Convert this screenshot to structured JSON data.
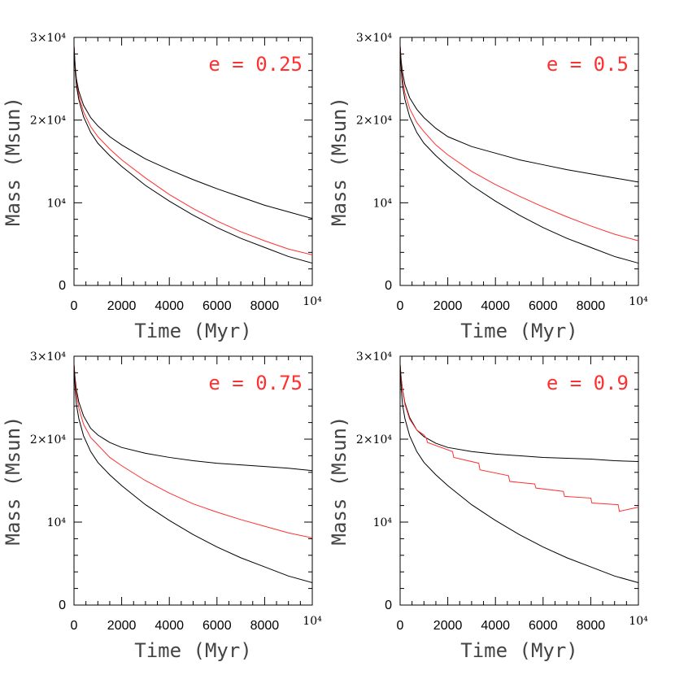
{
  "chart_data": [
    {
      "type": "line",
      "annotation": "e = 0.25",
      "xlabel": "Time (Myr)",
      "ylabel": "Mass (Msun)",
      "xlim": [
        0,
        10000
      ],
      "ylim": [
        0,
        30000
      ],
      "xtick_labels": [
        "0",
        "2000",
        "4000",
        "6000",
        "8000",
        "10⁴"
      ],
      "ytick_labels": [
        "0",
        "10⁴",
        "2×10⁴",
        "3×10⁴"
      ],
      "series": [
        {
          "color": "#000000",
          "x": [
            0,
            50,
            100,
            200,
            400,
            700,
            1000,
            1500,
            2000,
            3000,
            4000,
            5000,
            6000,
            7000,
            8000,
            9000,
            10000
          ],
          "y": [
            29000,
            26500,
            25000,
            23500,
            21800,
            20300,
            19300,
            18000,
            17000,
            15300,
            14000,
            12800,
            11700,
            10700,
            9700,
            8900,
            8100
          ]
        },
        {
          "color": "#ff3030",
          "x": [
            0,
            50,
            100,
            200,
            400,
            700,
            1000,
            1500,
            2000,
            3000,
            4000,
            5000,
            6000,
            7000,
            8000,
            9000,
            10000
          ],
          "y": [
            29000,
            26200,
            24500,
            23000,
            21000,
            19200,
            18000,
            16500,
            15200,
            13000,
            11000,
            9300,
            7800,
            6500,
            5400,
            4400,
            3700
          ]
        },
        {
          "color": "#000000",
          "x": [
            0,
            50,
            100,
            200,
            400,
            700,
            1000,
            1500,
            2000,
            3000,
            4000,
            5000,
            6000,
            7000,
            8000,
            9000,
            10000
          ],
          "y": [
            29000,
            26000,
            24200,
            22500,
            20400,
            18500,
            17200,
            15700,
            14400,
            12100,
            10200,
            8500,
            7000,
            5700,
            4600,
            3500,
            2700
          ]
        }
      ]
    },
    {
      "type": "line",
      "annotation": "e = 0.5",
      "xlabel": "Time (Myr)",
      "ylabel": "Mass (Msun)",
      "xlim": [
        0,
        10000
      ],
      "ylim": [
        0,
        30000
      ],
      "xtick_labels": [
        "0",
        "2000",
        "4000",
        "6000",
        "8000",
        "10⁴"
      ],
      "ytick_labels": [
        "0",
        "10⁴",
        "2×10⁴",
        "3×10⁴"
      ],
      "series": [
        {
          "color": "#000000",
          "x": [
            0,
            50,
            100,
            200,
            400,
            700,
            1000,
            1500,
            2000,
            3000,
            4000,
            5000,
            6000,
            7000,
            8000,
            9000,
            10000
          ],
          "y": [
            29000,
            27000,
            25800,
            24300,
            22700,
            21300,
            20300,
            19000,
            18000,
            16800,
            16000,
            15200,
            14600,
            14000,
            13500,
            13000,
            12500
          ]
        },
        {
          "color": "#ff3030",
          "x": [
            0,
            50,
            100,
            200,
            400,
            700,
            1000,
            1500,
            2000,
            3000,
            4000,
            5000,
            6000,
            7000,
            8000,
            9000,
            10000
          ],
          "y": [
            29000,
            26500,
            25000,
            23300,
            21400,
            19700,
            18600,
            17000,
            15800,
            13800,
            12200,
            10800,
            9500,
            8300,
            7200,
            6200,
            5400
          ]
        },
        {
          "color": "#000000",
          "x": [
            0,
            50,
            100,
            200,
            400,
            700,
            1000,
            1500,
            2000,
            3000,
            4000,
            5000,
            6000,
            7000,
            8000,
            9000,
            10000
          ],
          "y": [
            29000,
            26000,
            24200,
            22500,
            20400,
            18500,
            17200,
            15700,
            14400,
            12100,
            10200,
            8500,
            7000,
            5700,
            4600,
            3500,
            2700
          ]
        }
      ]
    },
    {
      "type": "line",
      "annotation": "e = 0.75",
      "xlabel": "Time (Myr)",
      "ylabel": "Mass (Msun)",
      "xlim": [
        0,
        10000
      ],
      "ylim": [
        0,
        30000
      ],
      "xtick_labels": [
        "0",
        "2000",
        "4000",
        "6000",
        "8000",
        "10⁴"
      ],
      "ytick_labels": [
        "0",
        "10⁴",
        "2×10⁴",
        "3×10⁴"
      ],
      "series": [
        {
          "color": "#000000",
          "x": [
            0,
            50,
            100,
            200,
            400,
            700,
            1000,
            1500,
            2000,
            3000,
            4000,
            5000,
            6000,
            7000,
            8000,
            9000,
            10000
          ],
          "y": [
            29000,
            27200,
            26000,
            24500,
            22800,
            21300,
            20500,
            19600,
            19000,
            18300,
            17800,
            17400,
            17100,
            16900,
            16700,
            16500,
            16200
          ]
        },
        {
          "color": "#ff3030",
          "x": [
            0,
            50,
            100,
            200,
            400,
            700,
            1000,
            1500,
            2000,
            3000,
            4000,
            5000,
            6000,
            7000,
            8000,
            9000,
            10000
          ],
          "y": [
            29000,
            26800,
            25500,
            23800,
            21800,
            20200,
            19300,
            17800,
            16800,
            15000,
            13500,
            12200,
            11200,
            10300,
            9500,
            8700,
            8100
          ]
        },
        {
          "color": "#000000",
          "x": [
            0,
            50,
            100,
            200,
            400,
            700,
            1000,
            1500,
            2000,
            3000,
            4000,
            5000,
            6000,
            7000,
            8000,
            9000,
            10000
          ],
          "y": [
            29000,
            26000,
            24200,
            22500,
            20400,
            18500,
            17200,
            15700,
            14400,
            12100,
            10200,
            8500,
            7000,
            5700,
            4600,
            3500,
            2700
          ]
        }
      ]
    },
    {
      "type": "line",
      "annotation": "e = 0.9",
      "xlabel": "Time (Myr)",
      "ylabel": "Mass (Msun)",
      "xlim": [
        0,
        10000
      ],
      "ylim": [
        0,
        30000
      ],
      "xtick_labels": [
        "0",
        "2000",
        "4000",
        "6000",
        "8000",
        "10⁴"
      ],
      "ytick_labels": [
        "0",
        "10⁴",
        "2×10⁴",
        "3×10⁴"
      ],
      "series": [
        {
          "color": "#000000",
          "x": [
            0,
            50,
            100,
            200,
            400,
            700,
            1000,
            1500,
            2000,
            3000,
            4000,
            5000,
            6000,
            7000,
            8000,
            9000,
            10000
          ],
          "y": [
            29000,
            27200,
            26000,
            24400,
            22600,
            21100,
            20300,
            19500,
            19000,
            18500,
            18200,
            18000,
            17800,
            17700,
            17600,
            17400,
            17300
          ]
        },
        {
          "color": "#ff3030",
          "x": [
            0,
            50,
            100,
            200,
            400,
            700,
            1000,
            1100,
            1150,
            2200,
            2250,
            3300,
            3350,
            4550,
            4600,
            5650,
            5700,
            6850,
            6900,
            8000,
            8050,
            9150,
            9200,
            10000
          ],
          "y": [
            29000,
            27100,
            25900,
            24200,
            22400,
            21100,
            20500,
            20100,
            19600,
            18500,
            17800,
            17100,
            16300,
            15600,
            14900,
            14600,
            14100,
            13700,
            13100,
            12900,
            12300,
            12100,
            11300,
            11800
          ]
        },
        {
          "color": "#000000",
          "x": [
            0,
            50,
            100,
            200,
            400,
            700,
            1000,
            1500,
            2000,
            3000,
            4000,
            5000,
            6000,
            7000,
            8000,
            9000,
            10000
          ],
          "y": [
            29000,
            26000,
            24200,
            22500,
            20400,
            18500,
            17200,
            15700,
            14400,
            12100,
            10200,
            8500,
            7000,
            5700,
            4600,
            3500,
            2700
          ]
        }
      ]
    }
  ]
}
